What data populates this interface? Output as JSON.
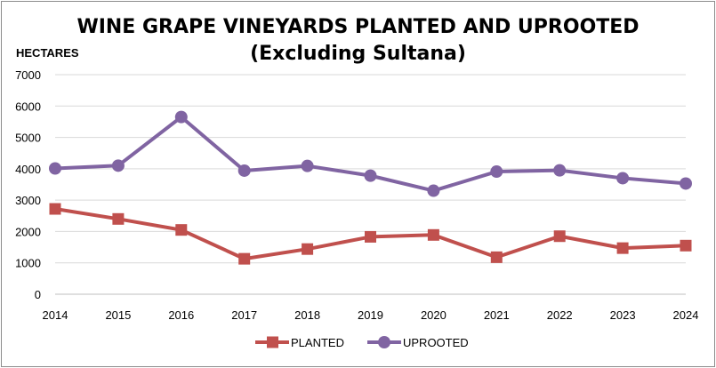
{
  "chart_data": {
    "type": "line",
    "title": "WINE GRAPE VINEYARDS PLANTED AND UPROOTED",
    "subtitle": "(Excluding Sultana)",
    "ylabel": "HECTARES",
    "xlabel": "",
    "ylim": [
      0,
      7000
    ],
    "yticks": [
      "0",
      "1000",
      "2000",
      "3000",
      "4000",
      "5000",
      "6000",
      "7000"
    ],
    "categories": [
      "2014",
      "2015",
      "2016",
      "2017",
      "2018",
      "2019",
      "2020",
      "2021",
      "2022",
      "2023",
      "2024"
    ],
    "grid": true,
    "legend_position": "bottom",
    "series": [
      {
        "name": "PLANTED",
        "color": "#c0504d",
        "marker": "square",
        "values": [
          2720,
          2400,
          2050,
          1130,
          1440,
          1830,
          1890,
          1180,
          1850,
          1470,
          1550
        ]
      },
      {
        "name": "UPROOTED",
        "color": "#8064a2",
        "marker": "circle",
        "values": [
          4010,
          4100,
          5650,
          3940,
          4090,
          3780,
          3300,
          3910,
          3950,
          3700,
          3530
        ]
      }
    ]
  }
}
